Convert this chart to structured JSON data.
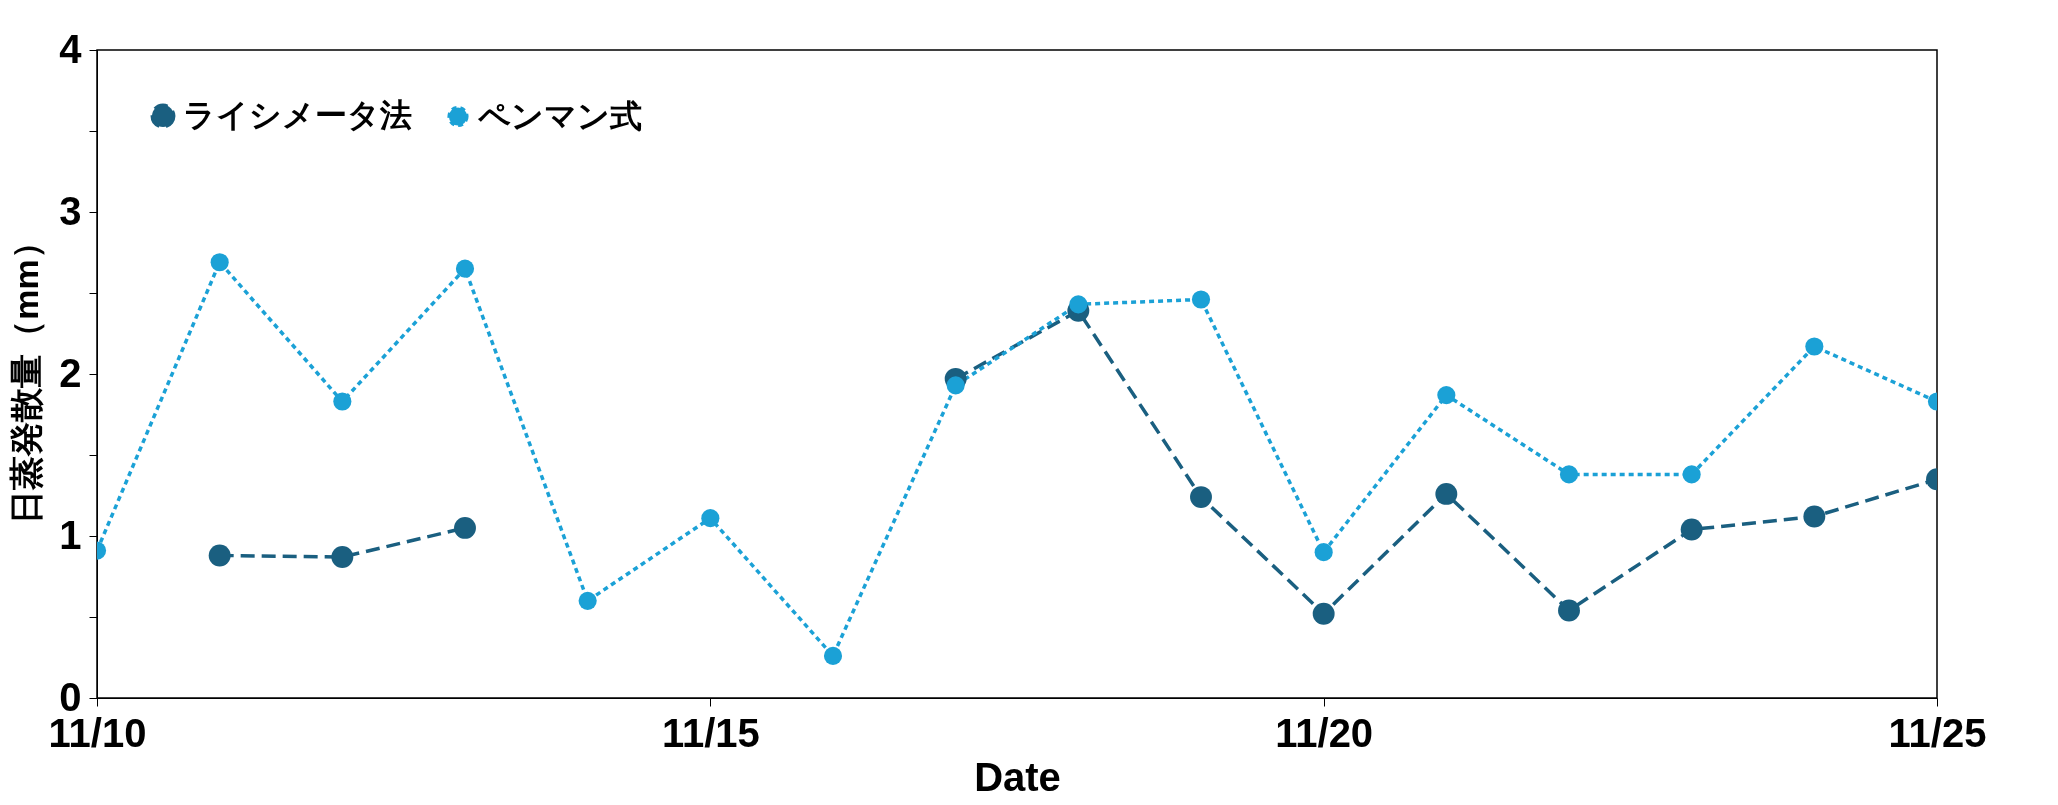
{
  "chart_data": {
    "type": "line",
    "xlabel": "Date",
    "ylabel": "日蒸発散量（mm）",
    "x": [
      "--11-10",
      "--11-11",
      "--11-12",
      "--11-13",
      "--11-14",
      "--11-15",
      "--11-16",
      "--11-17",
      "--11-18",
      "--11-19",
      "--11-20",
      "--11-21",
      "--11-22",
      "--11-23",
      "--11-24",
      "--11-25"
    ],
    "series": [
      {
        "name": "ライシメータ法",
        "color": "#1a5f80",
        "line_style": "dashed",
        "values": [
          null,
          0.88,
          0.87,
          1.05,
          null,
          null,
          null,
          1.97,
          2.39,
          1.24,
          0.52,
          1.26,
          0.54,
          1.04,
          1.12,
          1.35
        ]
      },
      {
        "name": "ペンマン式",
        "color": "#1ba1d6",
        "line_style": "dotted",
        "values": [
          0.91,
          2.69,
          1.83,
          2.65,
          0.6,
          1.11,
          0.26,
          1.93,
          2.43,
          2.46,
          0.9,
          1.87,
          1.38,
          1.38,
          2.17,
          1.83
        ]
      }
    ],
    "xlim": [
      "--11-10",
      "--11-25"
    ],
    "xticks": [
      {
        "value": "--11-10",
        "label": "11/10"
      },
      {
        "value": "--11-15",
        "label": "11/15"
      },
      {
        "value": "--11-20",
        "label": "11/20"
      },
      {
        "value": "--11-25",
        "label": "11/25"
      }
    ],
    "ylim": [
      0,
      4
    ],
    "yticks": [
      0,
      {
        "value": 0.5,
        "label": null
      },
      1,
      {
        "value": 1.5,
        "label": null
      },
      2,
      {
        "value": 2.5,
        "label": null
      },
      3,
      {
        "value": 3.5,
        "label": null
      },
      4
    ],
    "grid": false,
    "legend": "top left",
    "marker": "circle"
  }
}
